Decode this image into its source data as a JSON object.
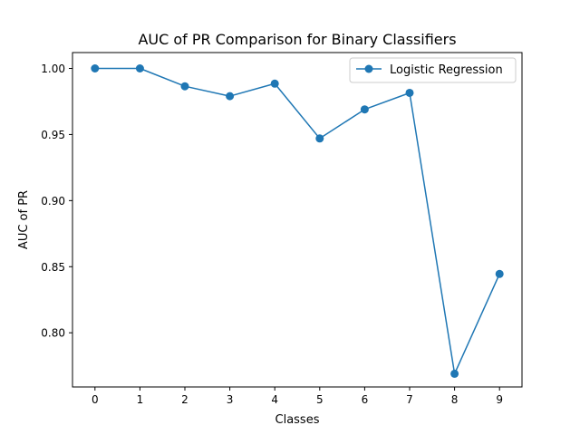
{
  "chart_data": {
    "type": "line",
    "title": "AUC of PR Comparison for Binary Classifiers",
    "xlabel": "Classes",
    "ylabel": "AUC of PR",
    "x": [
      0,
      1,
      2,
      3,
      4,
      5,
      6,
      7,
      8,
      9
    ],
    "x_ticks": [
      "0",
      "1",
      "2",
      "3",
      "4",
      "5",
      "6",
      "7",
      "8",
      "9"
    ],
    "y_ticks": [
      "0.80",
      "0.85",
      "0.90",
      "0.95",
      "1.00"
    ],
    "y_tick_values": [
      0.8,
      0.85,
      0.9,
      0.95,
      1.0
    ],
    "xlim": [
      -0.5,
      9.5
    ],
    "ylim": [
      0.759,
      1.012
    ],
    "grid": false,
    "legend_position": "top-right",
    "series": [
      {
        "name": "Logistic Regression",
        "color": "#1f77b4",
        "marker": "circle",
        "values": [
          1.0,
          1.0,
          0.9865,
          0.979,
          0.9885,
          0.947,
          0.969,
          0.9815,
          0.769,
          0.8445
        ]
      }
    ]
  }
}
